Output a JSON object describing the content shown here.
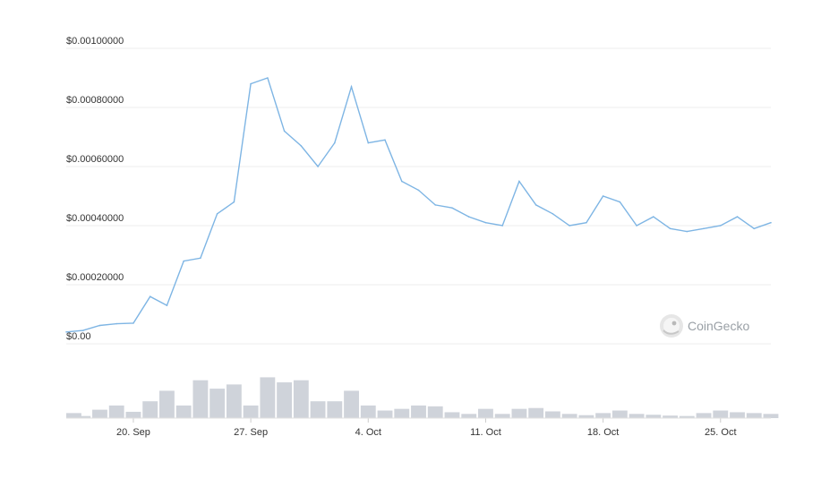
{
  "chart_data": {
    "type": "line",
    "series": [
      {
        "kind": "price",
        "x": [
          "2021-09-16",
          "2021-09-17",
          "2021-09-18",
          "2021-09-19",
          "2021-09-20",
          "2021-09-21",
          "2021-09-22",
          "2021-09-23",
          "2021-09-24",
          "2021-09-25",
          "2021-09-26",
          "2021-09-27",
          "2021-09-28",
          "2021-09-29",
          "2021-09-30",
          "2021-10-01",
          "2021-10-02",
          "2021-10-03",
          "2021-10-04",
          "2021-10-05",
          "2021-10-06",
          "2021-10-07",
          "2021-10-08",
          "2021-10-09",
          "2021-10-10",
          "2021-10-11",
          "2021-10-12",
          "2021-10-13",
          "2021-10-14",
          "2021-10-15",
          "2021-10-16",
          "2021-10-17",
          "2021-10-18",
          "2021-10-19",
          "2021-10-20",
          "2021-10-21",
          "2021-10-22",
          "2021-10-23",
          "2021-10-24",
          "2021-10-25",
          "2021-10-26",
          "2021-10-27",
          "2021-10-28"
        ],
        "values": [
          4e-05,
          4.5e-05,
          6.2e-05,
          6.8e-05,
          7e-05,
          0.00016,
          0.00013,
          0.00028,
          0.00029,
          0.00044,
          0.00048,
          0.00088,
          0.0009,
          0.00072,
          0.00067,
          0.0006,
          0.00068,
          0.00087,
          0.00068,
          0.00069,
          0.00055,
          0.00052,
          0.00047,
          0.00046,
          0.00043,
          0.00041,
          0.0004,
          0.00055,
          0.00047,
          0.00044,
          0.0004,
          0.00041,
          0.0005,
          0.00048,
          0.0004,
          0.00043,
          0.00039,
          0.00038,
          0.00039,
          0.0004,
          0.00043,
          0.00039,
          0.00041
        ]
      },
      {
        "kind": "volume",
        "x": [
          "2021-09-16",
          "2021-09-17",
          "2021-09-18",
          "2021-09-19",
          "2021-09-20",
          "2021-09-21",
          "2021-09-22",
          "2021-09-23",
          "2021-09-24",
          "2021-09-25",
          "2021-09-26",
          "2021-09-27",
          "2021-09-28",
          "2021-09-29",
          "2021-09-30",
          "2021-10-01",
          "2021-10-02",
          "2021-10-03",
          "2021-10-04",
          "2021-10-05",
          "2021-10-06",
          "2021-10-07",
          "2021-10-08",
          "2021-10-09",
          "2021-10-10",
          "2021-10-11",
          "2021-10-12",
          "2021-10-13",
          "2021-10-14",
          "2021-10-15",
          "2021-10-16",
          "2021-10-17",
          "2021-10-18",
          "2021-10-19",
          "2021-10-20",
          "2021-10-21",
          "2021-10-22",
          "2021-10-23",
          "2021-10-24",
          "2021-10-25",
          "2021-10-26",
          "2021-10-27",
          "2021-10-28"
        ],
        "values": [
          0.12,
          0.05,
          0.2,
          0.3,
          0.15,
          0.4,
          0.65,
          0.3,
          0.9,
          0.7,
          0.8,
          0.3,
          0.97,
          0.85,
          0.9,
          0.4,
          0.4,
          0.65,
          0.3,
          0.18,
          0.22,
          0.3,
          0.28,
          0.14,
          0.1,
          0.22,
          0.1,
          0.22,
          0.24,
          0.16,
          0.1,
          0.07,
          0.12,
          0.18,
          0.1,
          0.08,
          0.06,
          0.05,
          0.12,
          0.18,
          0.14,
          0.12,
          0.1
        ]
      }
    ],
    "x_start": "2021-09-16",
    "x_end": "2021-10-28",
    "ylim": [
      0,
      0.001
    ],
    "yticks": [
      0,
      0.0002,
      0.0004,
      0.0006,
      0.0008,
      0.001
    ],
    "ytick_labels": [
      "$0.00",
      "$0.00020000",
      "$0.00040000",
      "$0.00060000",
      "$0.00080000",
      "$0.00100000"
    ],
    "xticks": [
      "2021-09-20",
      "2021-09-27",
      "2021-10-04",
      "2021-10-11",
      "2021-10-18",
      "2021-10-25"
    ],
    "xtick_labels": [
      "20. Sep",
      "27. Sep",
      "4. Oct",
      "11. Oct",
      "18. Oct",
      "25. Oct"
    ],
    "grid": true,
    "colors": {
      "line": "#7eb5e4",
      "volume": "#cfd3da",
      "grid": "#ececec"
    }
  },
  "watermark": {
    "text": "CoinGecko",
    "icon": "gecko-logo-icon"
  }
}
